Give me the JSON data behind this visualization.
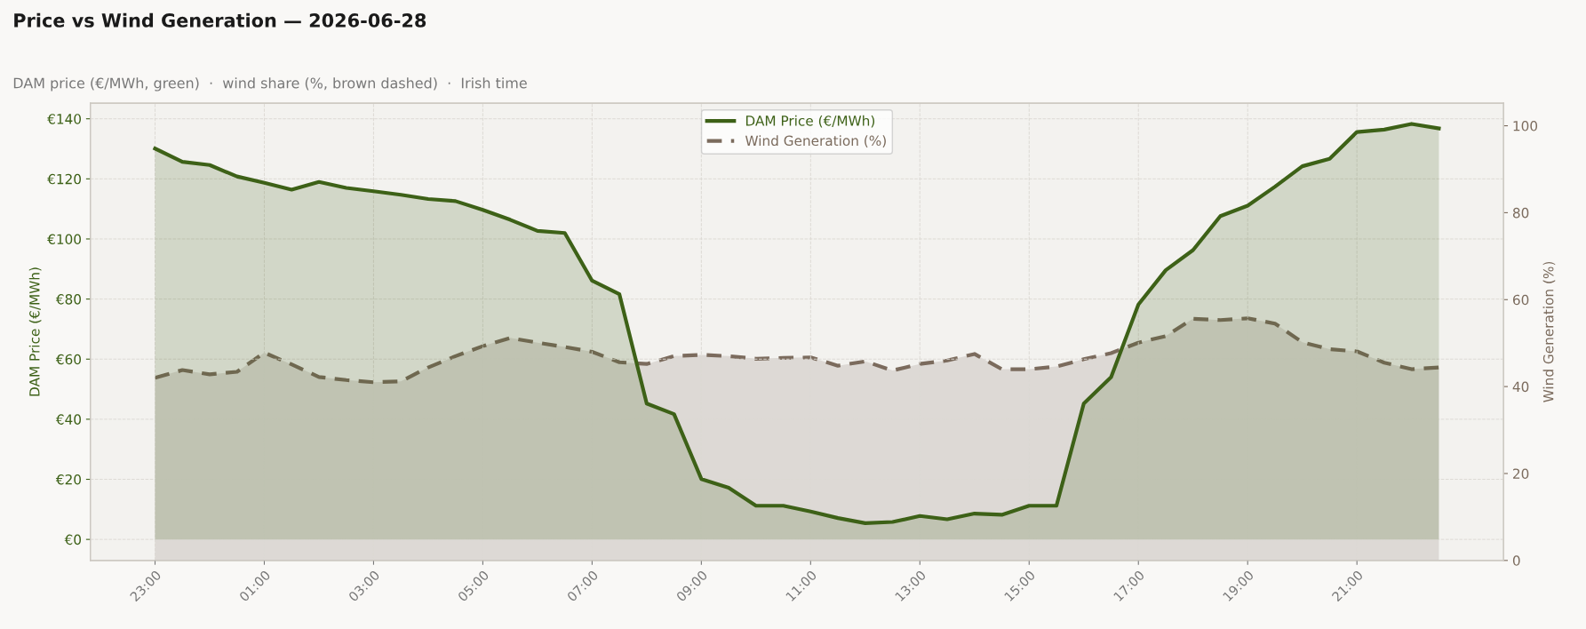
{
  "chart_data": {
    "type": "area",
    "title": "Price vs Wind Generation — 2026-06-28",
    "subtitle": "DAM price (€/MWh, green)  ·  wind share (%, brown dashed)  ·  Irish time",
    "ylabel": "DAM Price (€/MWh)",
    "y2label": "Wind Generation (%)",
    "x": [
      "2026-06-27T23:00",
      "2026-06-27T23:30",
      "2026-06-28T00:00",
      "2026-06-28T00:30",
      "2026-06-28T01:00",
      "2026-06-28T01:30",
      "2026-06-28T02:00",
      "2026-06-28T02:30",
      "2026-06-28T03:00",
      "2026-06-28T03:30",
      "2026-06-28T04:00",
      "2026-06-28T04:30",
      "2026-06-28T05:00",
      "2026-06-28T05:30",
      "2026-06-28T06:00",
      "2026-06-28T06:30",
      "2026-06-28T07:00",
      "2026-06-28T07:30",
      "2026-06-28T08:00",
      "2026-06-28T08:30",
      "2026-06-28T09:00",
      "2026-06-28T09:30",
      "2026-06-28T10:00",
      "2026-06-28T10:30",
      "2026-06-28T11:00",
      "2026-06-28T11:30",
      "2026-06-28T12:00",
      "2026-06-28T12:30",
      "2026-06-28T13:00",
      "2026-06-28T13:30",
      "2026-06-28T14:00",
      "2026-06-28T14:30",
      "2026-06-28T15:00",
      "2026-06-28T15:30",
      "2026-06-28T16:00",
      "2026-06-28T16:30",
      "2026-06-28T17:00",
      "2026-06-28T17:30",
      "2026-06-28T18:00",
      "2026-06-28T18:30",
      "2026-06-28T19:00",
      "2026-06-28T19:30",
      "2026-06-28T20:00",
      "2026-06-28T20:30",
      "2026-06-28T21:00",
      "2026-06-28T21:30",
      "2026-06-28T22:00",
      "2026-06-28T22:30"
    ],
    "series": [
      {
        "name": "DAM Price (€/MWh)",
        "color": "#3d6117",
        "line_style": "solid",
        "values": [
          130.1,
          125.7,
          124.6,
          120.8,
          118.7,
          116.4,
          119.0,
          117.0,
          115.9,
          114.7,
          113.3,
          112.6,
          109.7,
          106.4,
          102.7,
          102.0,
          86.1,
          81.6,
          45.2,
          41.7,
          20.1,
          17.2,
          11.2,
          11.2,
          9.3,
          7.1,
          5.4,
          5.8,
          7.8,
          6.7,
          8.6,
          8.2,
          11.2,
          11.2,
          45.2,
          54.0,
          78.2,
          89.6,
          96.3,
          107.6,
          111.1,
          117.4,
          124.2,
          126.7,
          135.6,
          136.4,
          138.3,
          136.8
        ]
      },
      {
        "name": "Wind Generation (%)",
        "color": "#7b6b5d",
        "axis": "y2",
        "line_style": "dashed",
        "values": [
          42.0,
          43.8,
          42.8,
          43.4,
          47.8,
          45.1,
          42.2,
          41.5,
          41.0,
          41.2,
          44.4,
          47.0,
          49.3,
          51.2,
          50.1,
          49.1,
          48.0,
          45.6,
          45.2,
          47.0,
          47.3,
          47.0,
          46.4,
          46.6,
          46.7,
          44.8,
          45.8,
          43.7,
          45.2,
          46.0,
          47.5,
          44.0,
          44.0,
          44.6,
          46.3,
          47.7,
          50.1,
          51.6,
          55.6,
          55.3,
          55.7,
          54.5,
          50.2,
          48.6,
          48.1,
          45.5,
          44.0,
          44.4
        ]
      }
    ],
    "xlim": [
      "2026-06-27T21:49",
      "2026-06-28T23:41"
    ],
    "xticks": [
      {
        "value": "2026-06-27T23:00",
        "label": "23:00"
      },
      {
        "value": "2026-06-28T01:00",
        "label": "01:00"
      },
      {
        "value": "2026-06-28T03:00",
        "label": "03:00"
      },
      {
        "value": "2026-06-28T05:00",
        "label": "05:00"
      },
      {
        "value": "2026-06-28T07:00",
        "label": "07:00"
      },
      {
        "value": "2026-06-28T09:00",
        "label": "09:00"
      },
      {
        "value": "2026-06-28T11:00",
        "label": "11:00"
      },
      {
        "value": "2026-06-28T13:00",
        "label": "13:00"
      },
      {
        "value": "2026-06-28T15:00",
        "label": "15:00"
      },
      {
        "value": "2026-06-28T17:00",
        "label": "17:00"
      },
      {
        "value": "2026-06-28T19:00",
        "label": "19:00"
      },
      {
        "value": "2026-06-28T21:00",
        "label": "21:00"
      }
    ],
    "ylim": [
      -7,
      145.2
    ],
    "yticks": [
      {
        "value": 0,
        "label": "€0"
      },
      {
        "value": 20,
        "label": "€20"
      },
      {
        "value": 40,
        "label": "€40"
      },
      {
        "value": 60,
        "label": "€60"
      },
      {
        "value": 80,
        "label": "€80"
      },
      {
        "value": 100,
        "label": "€100"
      },
      {
        "value": 120,
        "label": "€120"
      },
      {
        "value": 140,
        "label": "€140"
      }
    ],
    "y2lim": [
      0,
      105.2
    ],
    "y2ticks": [
      0,
      20,
      40,
      60,
      80,
      100
    ],
    "grid": true,
    "legend": "top"
  }
}
